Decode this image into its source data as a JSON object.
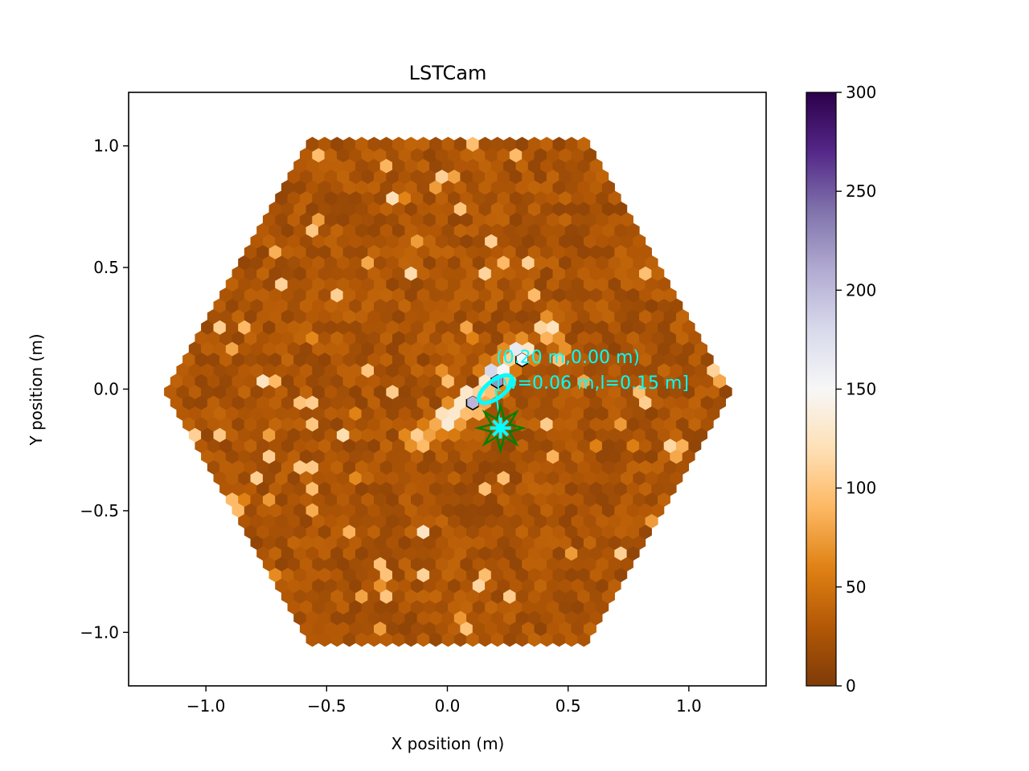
{
  "chart_data": {
    "type": "heatmap",
    "title": "LSTCam",
    "xlabel": "X position (m)",
    "ylabel": "Y position (m)",
    "xlim": [
      -1.32,
      1.32
    ],
    "ylim": [
      -1.22,
      1.22
    ],
    "x_ticks": [
      -1.0,
      -0.5,
      0.0,
      0.5,
      1.0
    ],
    "x_tick_labels": [
      "−1.0",
      "−0.5",
      "0.0",
      "0.5",
      "1.0"
    ],
    "y_ticks": [
      -1.0,
      -0.5,
      0.0,
      0.5,
      1.0
    ],
    "y_tick_labels": [
      "−1.0",
      "−0.5",
      "0.0",
      "0.5",
      "1.0"
    ],
    "colorbar": {
      "range": [
        0,
        300
      ],
      "ticks": [
        0,
        50,
        100,
        150,
        200,
        250,
        300
      ],
      "tick_labels": [
        "0",
        "50",
        "100",
        "150",
        "200",
        "250",
        "300"
      ],
      "colormap": "PuOr",
      "colors": [
        "#7f3b08",
        "#b35806",
        "#e08214",
        "#fdb863",
        "#fee0b6",
        "#f7f7f7",
        "#d8daeb",
        "#b2abd2",
        "#8073ac",
        "#542788",
        "#2d004b"
      ]
    },
    "camera": {
      "shape": "hexagonal pixel grid",
      "outer_hexagon_half_width_m": 1.19,
      "background_level": 25,
      "shower_track": [
        {
          "x": 0.42,
          "y": 0.25,
          "value": 140
        },
        {
          "x": 0.3,
          "y": 0.15,
          "value": 190
        },
        {
          "x": 0.2,
          "y": 0.05,
          "value": 230
        },
        {
          "x": 0.1,
          "y": -0.05,
          "value": 200
        },
        {
          "x": 0.0,
          "y": -0.12,
          "value": 160
        },
        {
          "x": -0.12,
          "y": -0.2,
          "value": 120
        }
      ]
    },
    "hillas_ellipse": {
      "center_x": 0.2,
      "center_y": 0.0,
      "width_m": 0.06,
      "length_m": 0.15,
      "angle_deg": 37,
      "color": "#00ffff"
    },
    "annotations": {
      "centroid": "(0.20 m,0.00 m)",
      "size": "[w=0.06 m,l=0.15 m]",
      "color": "#00ffff"
    },
    "source_marker": {
      "x": 0.22,
      "y": -0.16,
      "color": "#008000"
    },
    "fit_marker": {
      "x": 0.22,
      "y": -0.16,
      "color": "#00ffff"
    }
  }
}
